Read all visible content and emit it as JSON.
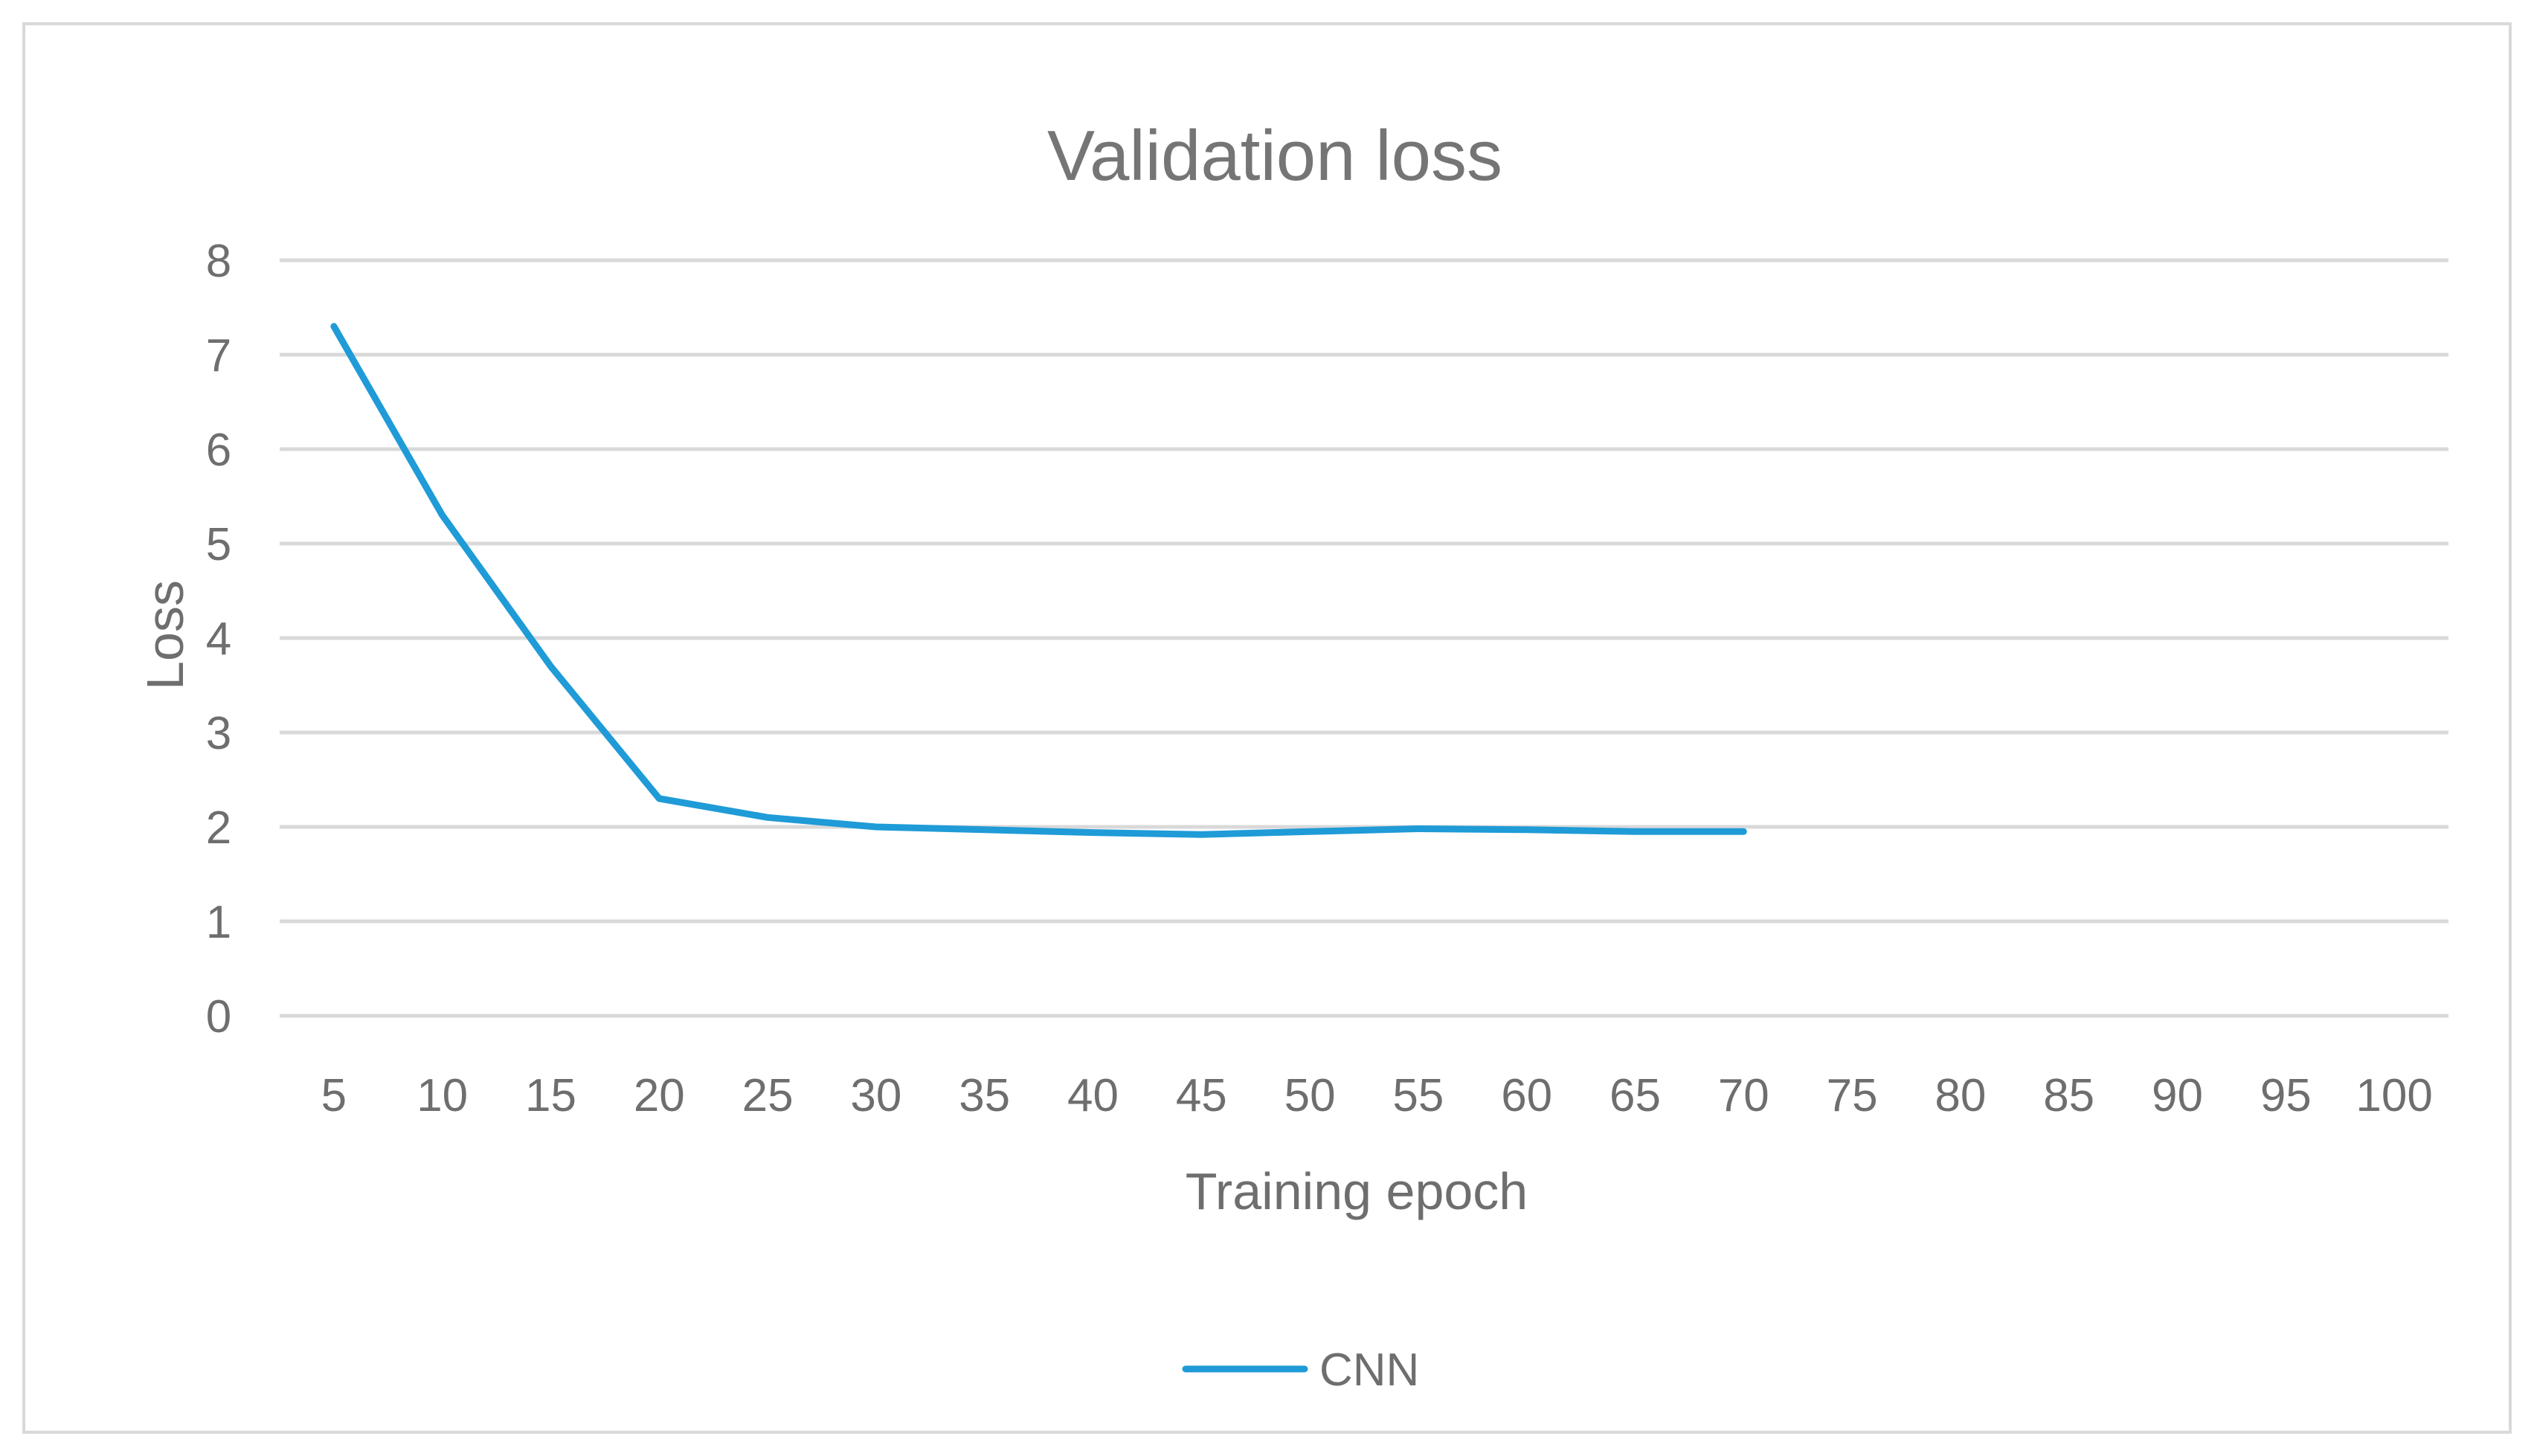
{
  "chart_data": {
    "type": "line",
    "title": "Validation loss",
    "xlabel": "Training epoch",
    "ylabel": "Loss",
    "categories": [
      "5",
      "10",
      "15",
      "20",
      "25",
      "30",
      "35",
      "40",
      "45",
      "50",
      "55",
      "60",
      "65",
      "70",
      "75",
      "80",
      "85",
      "90",
      "95",
      "100"
    ],
    "y_ticks": [
      "0",
      "1",
      "2",
      "3",
      "4",
      "5",
      "6",
      "7",
      "8"
    ],
    "ylim": [
      0,
      8
    ],
    "grid": true,
    "legend_position": "bottom",
    "series": [
      {
        "name": "CNN",
        "color": "#1f9bd7",
        "values": [
          7.3,
          5.3,
          3.7,
          2.3,
          2.1,
          2.0,
          1.97,
          1.94,
          1.92,
          1.95,
          1.98,
          1.97,
          1.95,
          1.95,
          null,
          null,
          null,
          null,
          null,
          null
        ]
      }
    ]
  }
}
